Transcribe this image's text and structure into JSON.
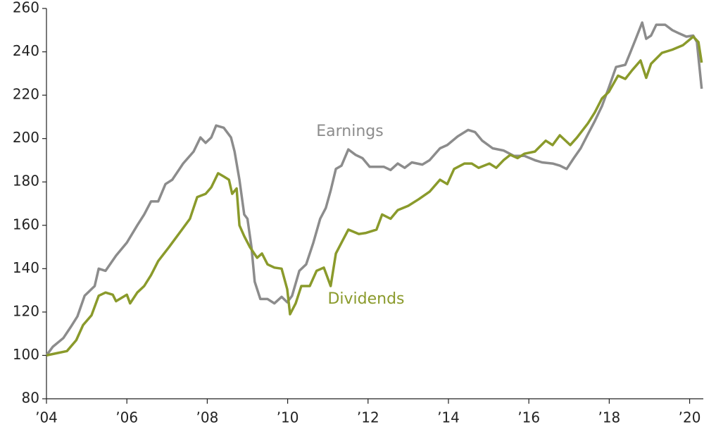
{
  "chart_data": {
    "type": "line",
    "xlim": [
      2004,
      2020.34
    ],
    "ylim": [
      80,
      260
    ],
    "yticks": [
      80,
      100,
      120,
      140,
      160,
      180,
      200,
      220,
      240,
      260
    ],
    "xticks": [
      {
        "value": 2004,
        "label": "’04"
      },
      {
        "value": 2006,
        "label": "’06"
      },
      {
        "value": 2008,
        "label": "’08"
      },
      {
        "value": 2010,
        "label": "’10"
      },
      {
        "value": 2012,
        "label": "’12"
      },
      {
        "value": 2014,
        "label": "’14"
      },
      {
        "value": 2016,
        "label": "’16"
      },
      {
        "value": 2018,
        "label": "’18"
      },
      {
        "value": 2020,
        "label": "’20"
      }
    ],
    "grid": false,
    "series": [
      {
        "name": "Earnings",
        "color": "#8c8c8c",
        "x": [
          2004.0,
          2004.16,
          2004.42,
          2004.6,
          2004.77,
          2004.95,
          2005.2,
          2005.3,
          2005.47,
          2005.73,
          2006.0,
          2006.26,
          2006.43,
          2006.6,
          2006.78,
          2006.96,
          2007.13,
          2007.4,
          2007.66,
          2007.83,
          2007.96,
          2008.1,
          2008.22,
          2008.41,
          2008.59,
          2008.68,
          2008.8,
          2008.92,
          2009.0,
          2009.1,
          2009.18,
          2009.32,
          2009.5,
          2009.67,
          2009.85,
          2009.99,
          2010.11,
          2010.29,
          2010.46,
          2010.64,
          2010.81,
          2010.95,
          2011.07,
          2011.2,
          2011.34,
          2011.51,
          2011.69,
          2011.86,
          2012.04,
          2012.39,
          2012.56,
          2012.74,
          2012.91,
          2013.09,
          2013.35,
          2013.53,
          2013.79,
          2013.97,
          2014.23,
          2014.49,
          2014.66,
          2014.84,
          2015.1,
          2015.37,
          2015.63,
          2015.89,
          2016.15,
          2016.33,
          2016.59,
          2016.77,
          2016.94,
          2017.12,
          2017.29,
          2017.47,
          2017.64,
          2017.82,
          2017.99,
          2018.17,
          2018.4,
          2018.52,
          2018.66,
          2018.82,
          2018.92,
          2019.04,
          2019.17,
          2019.39,
          2019.57,
          2019.74,
          2019.92,
          2020.09,
          2020.18,
          2020.3
        ],
        "values": [
          100,
          104,
          108,
          113,
          118,
          127.5,
          132,
          140,
          139,
          146,
          152,
          160,
          165,
          171,
          171,
          179,
          181,
          188.5,
          194,
          200.5,
          198,
          200.5,
          206,
          205,
          200.5,
          194,
          181,
          165,
          163,
          150,
          134,
          126,
          126,
          124,
          127,
          124.5,
          127.5,
          139,
          142,
          152,
          163,
          168,
          176,
          186,
          187.5,
          195,
          192.5,
          191,
          187,
          187,
          185.5,
          188.5,
          186.5,
          189,
          188,
          190,
          195.5,
          197,
          201,
          204,
          203,
          199,
          195.5,
          194.5,
          192,
          192,
          190,
          189,
          188.5,
          187.5,
          186,
          191,
          195.5,
          202,
          208,
          215,
          223.5,
          233,
          234,
          239.5,
          246,
          253.5,
          246,
          247.5,
          252.5,
          252.5,
          250,
          248.5,
          247,
          247.5,
          244.5,
          223
        ]
      },
      {
        "name": "Dividends",
        "color": "#8a9a2b",
        "x": [
          2004.0,
          2004.25,
          2004.51,
          2004.74,
          2004.91,
          2005.12,
          2005.3,
          2005.47,
          2005.65,
          2005.73,
          2006.0,
          2006.08,
          2006.26,
          2006.43,
          2006.6,
          2006.78,
          2007.05,
          2007.31,
          2007.57,
          2007.75,
          2007.96,
          2008.1,
          2008.27,
          2008.41,
          2008.54,
          2008.62,
          2008.73,
          2008.8,
          2008.92,
          2009.06,
          2009.24,
          2009.36,
          2009.5,
          2009.67,
          2009.85,
          2009.99,
          2010.06,
          2010.2,
          2010.34,
          2010.55,
          2010.72,
          2010.9,
          2011.07,
          2011.2,
          2011.34,
          2011.51,
          2011.77,
          2011.95,
          2012.21,
          2012.35,
          2012.56,
          2012.74,
          2013.0,
          2013.26,
          2013.53,
          2013.79,
          2013.97,
          2014.14,
          2014.4,
          2014.58,
          2014.75,
          2015.02,
          2015.19,
          2015.37,
          2015.54,
          2015.72,
          2015.89,
          2016.15,
          2016.42,
          2016.59,
          2016.77,
          2017.03,
          2017.2,
          2017.47,
          2017.64,
          2017.82,
          2017.99,
          2018.22,
          2018.4,
          2018.57,
          2018.78,
          2018.92,
          2019.04,
          2019.31,
          2019.57,
          2019.83,
          2020.09,
          2020.22,
          2020.3
        ],
        "values": [
          100,
          101,
          102,
          107,
          114,
          118.5,
          127.5,
          129,
          128,
          125,
          128,
          124,
          129,
          132,
          137,
          143.5,
          150,
          156.5,
          163,
          173,
          174.5,
          177.5,
          184,
          182.5,
          181,
          174.5,
          177,
          160,
          155,
          150,
          145,
          147,
          142,
          140.5,
          140,
          130.5,
          119,
          124,
          132,
          132,
          139,
          140.5,
          132,
          147,
          152,
          158,
          156,
          156.5,
          158,
          165,
          163,
          167,
          169,
          172,
          175.5,
          181,
          179,
          186,
          188.5,
          188.5,
          186.5,
          188.5,
          186.5,
          190,
          192.5,
          191,
          193,
          194,
          199,
          197,
          201.5,
          197,
          200.5,
          207,
          212,
          218.5,
          221.5,
          229,
          227.5,
          231.5,
          236,
          228,
          234.5,
          239.5,
          241,
          243,
          247,
          244.5,
          235
        ]
      }
    ]
  }
}
